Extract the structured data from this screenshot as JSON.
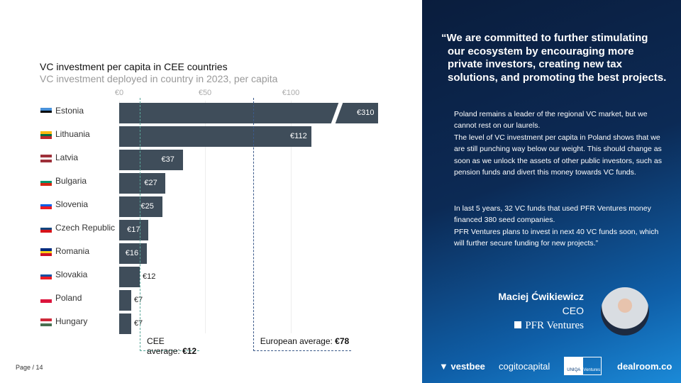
{
  "chart_data": {
    "type": "bar",
    "title": "VC investment per capita in CEE countries",
    "subtitle": "VC investment deployed in country in 2023, per capita",
    "ticks": [
      "€0",
      "€50",
      "€100"
    ],
    "tick_values": [
      0,
      50,
      100
    ],
    "categories": [
      "Estonia",
      "Lithuania",
      "Latvia",
      "Bulgaria",
      "Slovenia",
      "Czech Republic",
      "Romania",
      "Slovakia",
      "Poland",
      "Hungary"
    ],
    "values": [
      310,
      112,
      37,
      27,
      25,
      17,
      16,
      12,
      7,
      7
    ],
    "labels": [
      "€310",
      "€112",
      "€37",
      "€27",
      "€25",
      "€17",
      "€16",
      "€12",
      "€7",
      "€7"
    ],
    "axis_break": "Estonia bar truncated",
    "flags": [
      [
        "#4891d9",
        "#000000",
        "#ffffff"
      ],
      [
        "#fdb913",
        "#006a44",
        "#c1272d"
      ],
      [
        "#9e3039",
        "#ffffff",
        "#9e3039"
      ],
      [
        "#ffffff",
        "#00966e",
        "#d62612"
      ],
      [
        "#ffffff",
        "#005ce5",
        "#ed1c24"
      ],
      [
        "#ffffff",
        "#11457e",
        "#d7141a"
      ],
      [
        "#002b7f",
        "#fcd116",
        "#ce1126"
      ],
      [
        "#ffffff",
        "#0b4ea2",
        "#ee1c25"
      ],
      [
        "#ffffff",
        "#dc143c"
      ],
      [
        "#ce2939",
        "#ffffff",
        "#477050"
      ]
    ],
    "references": [
      {
        "label": "CEE average: ",
        "value_label": "€12",
        "value": 12,
        "color": "#5aa89a"
      },
      {
        "label": "European average: ",
        "value_label": "€78",
        "value": 78,
        "color": "#3c5a8a"
      }
    ],
    "bar_color": "#3f4d5a"
  },
  "footer": {
    "page": "Page / 14"
  },
  "quote": {
    "headline": "“We are committed to further stimulating our ecosystem by encouraging more private investors, creating new tax solutions, and promoting the best projects.",
    "p1": "Poland remains a leader of the regional VC market, but we cannot rest on our laurels.",
    "p2": "The level of VC investment per capita in Poland shows that we are still punching way below our weight. This should change as soon as we unlock the assets of other public investors, such as pension funds and divert this money towards VC funds.",
    "p3": "In last 5 years, 32 VC funds that used PFR Ventures money financed 380 seed companies.",
    "p4": "PFR Ventures plans to invest in next 40 VC funds soon, which will further secure funding for new projects.”",
    "name": "Maciej Ćwikiewicz",
    "role": "CEO",
    "org": "PFR Ventures"
  },
  "logos": [
    "vestbee",
    "cogitocapital",
    "UNIQA",
    "Ventures",
    "dealroom.co"
  ]
}
